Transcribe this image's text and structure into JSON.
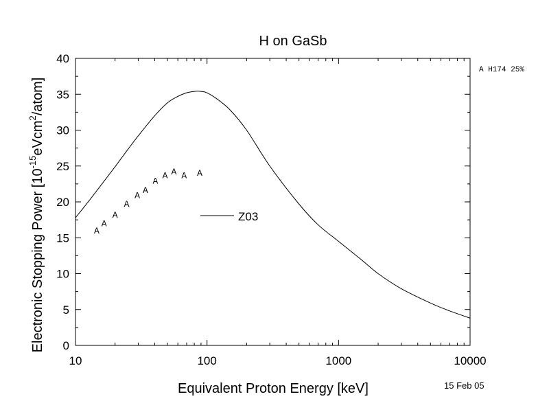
{
  "chart_data": {
    "type": "line",
    "title": "H on GaSb",
    "xlabel": "Equivalent Proton Energy [keV]",
    "ylabel_parts": {
      "pre": "Electronic Stopping Power [10",
      "exp1": "-15",
      "mid": "eVcm",
      "exp2": "2",
      "post": "/atom]"
    },
    "xscale": "log",
    "xlim": [
      10,
      10000
    ],
    "ylim": [
      0,
      40
    ],
    "xticks": [
      {
        "value": 10,
        "label": "10"
      },
      {
        "value": 100,
        "label": "100"
      },
      {
        "value": 1000,
        "label": "1000"
      },
      {
        "value": 10000,
        "label": "10000"
      }
    ],
    "yticks": [
      {
        "value": 0,
        "label": "0"
      },
      {
        "value": 5,
        "label": "5"
      },
      {
        "value": 10,
        "label": "10"
      },
      {
        "value": 15,
        "label": "15"
      },
      {
        "value": 20,
        "label": "20"
      },
      {
        "value": 25,
        "label": "25"
      },
      {
        "value": 30,
        "label": "30"
      },
      {
        "value": 35,
        "label": "35"
      },
      {
        "value": 40,
        "label": "40"
      }
    ],
    "grid": false,
    "legend_position": "center",
    "series": [
      {
        "name": "Z03",
        "kind": "line",
        "x": [
          10,
          12,
          15,
          20,
          25,
          30,
          40,
          50,
          60,
          70,
          80,
          90,
          100,
          120,
          150,
          200,
          300,
          500,
          700,
          1000,
          1500,
          2000,
          3000,
          5000,
          7000,
          10000
        ],
        "y": [
          17.8,
          19.6,
          21.9,
          24.9,
          27.3,
          29.2,
          32.0,
          33.8,
          34.7,
          35.2,
          35.4,
          35.4,
          35.2,
          34.3,
          32.8,
          30.0,
          25.0,
          19.7,
          16.8,
          14.5,
          11.9,
          10.0,
          7.9,
          5.9,
          4.8,
          3.8
        ]
      },
      {
        "name": "A",
        "kind": "marker",
        "marker_label": "A",
        "x": [
          14.5,
          16.5,
          20,
          24.5,
          29.5,
          34,
          40.5,
          48,
          56,
          67,
          88
        ],
        "y": [
          16.1,
          17.1,
          18.3,
          19.8,
          21.0,
          21.7,
          23.0,
          23.8,
          24.3,
          23.8,
          24.1
        ]
      }
    ],
    "annotations": {
      "reference": "A H174 25%",
      "date": "15 Feb 05"
    }
  },
  "colors": {
    "line": "#000000",
    "background": "#ffffff"
  }
}
